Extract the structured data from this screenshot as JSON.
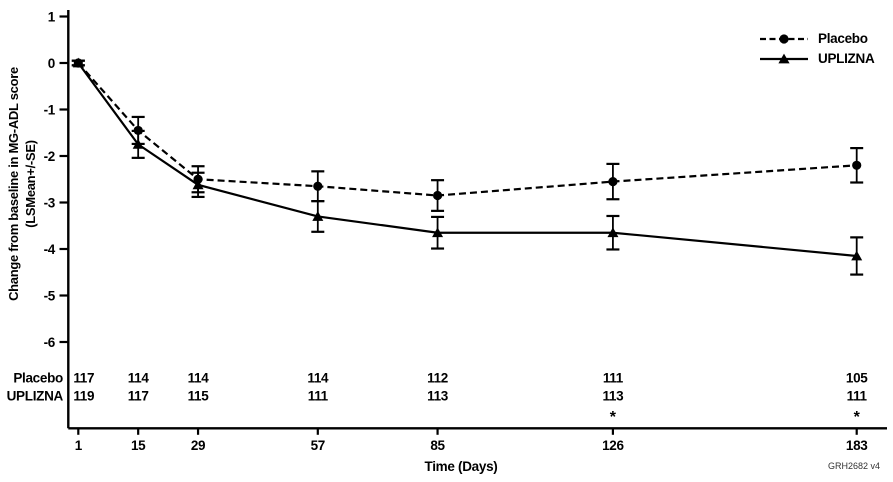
{
  "figure": {
    "xlabel": "Time (Days)",
    "ylabel_line1": "Change from baseline in MG-ADL score",
    "ylabel_line2": "(LSMean+/-SE)",
    "footnote": "GRH2682 v4"
  },
  "chart_data": {
    "type": "line",
    "title": "",
    "xlabel": "Time (Days)",
    "ylabel": "Change from baseline in MG-ADL score (LSMean+/-SE)",
    "x_days": [
      1,
      15,
      29,
      57,
      85,
      126,
      183
    ],
    "x_tick_labels": [
      "1",
      "15",
      "29",
      "57",
      "85",
      "126",
      "183"
    ],
    "yticks": [
      1,
      0,
      -1,
      -2,
      -3,
      -4,
      -5,
      -6
    ],
    "ylim": [
      -6.9,
      1.35
    ],
    "xlim": [
      1,
      190
    ],
    "grid": false,
    "legend_position": "top-right",
    "color": "#000000",
    "background": "#ffffff",
    "series": [
      {
        "name": "Placebo",
        "line_style": "dashed",
        "marker": "circle",
        "values": [
          0,
          -1.45,
          -2.5,
          -2.65,
          -2.85,
          -2.55,
          -2.2
        ],
        "se": [
          0.05,
          0.29,
          0.28,
          0.32,
          0.33,
          0.38,
          0.37
        ],
        "n_at_risk": [
          117,
          114,
          114,
          114,
          112,
          111,
          105
        ]
      },
      {
        "name": "UPLIZNA",
        "line_style": "solid",
        "marker": "triangle",
        "values": [
          0,
          -1.75,
          -2.62,
          -3.3,
          -3.65,
          -3.65,
          -4.15
        ],
        "se": [
          0.05,
          0.29,
          0.26,
          0.33,
          0.34,
          0.36,
          0.4
        ],
        "n_at_risk": [
          119,
          117,
          115,
          111,
          113,
          113,
          111
        ]
      }
    ],
    "asterisk_days": [
      126,
      183
    ],
    "asterisk_symbol": "*"
  }
}
